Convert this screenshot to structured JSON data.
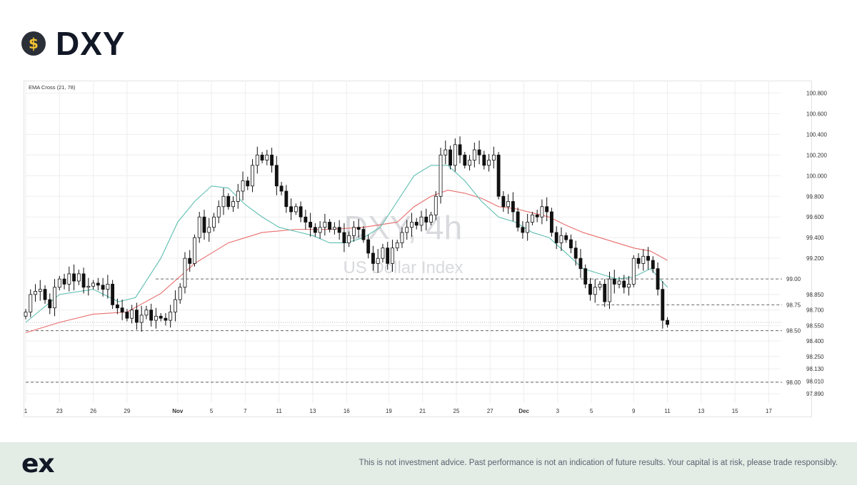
{
  "header": {
    "title": "DXY",
    "icon": "dollar-coin-icon",
    "coin_symbol": "$"
  },
  "chart_data": {
    "type": "candlestick",
    "symbol": "DXY",
    "watermark_symbol": "DXY, 4h",
    "watermark_name": "US Dollar Index",
    "indicator_label": "EMA Cross (21, 78)",
    "ylim": [
      97.8,
      100.92
    ],
    "xlim": [
      0,
      44.7
    ],
    "y_ticks": [
      {
        "value": 100.8,
        "label": "100.800"
      },
      {
        "value": 100.6,
        "label": "100.600"
      },
      {
        "value": 100.4,
        "label": "100.400"
      },
      {
        "value": 100.2,
        "label": "100.200"
      },
      {
        "value": 100.0,
        "label": "100.000"
      },
      {
        "value": 99.8,
        "label": "99.800"
      },
      {
        "value": 99.6,
        "label": "99.600"
      },
      {
        "value": 99.4,
        "label": "99.400"
      },
      {
        "value": 99.2,
        "label": "99.200"
      },
      {
        "value": 98.85,
        "label": "98.850"
      },
      {
        "value": 98.7,
        "label": "98.700"
      },
      {
        "value": 98.55,
        "label": "98.550"
      },
      {
        "value": 98.4,
        "label": "98.400"
      },
      {
        "value": 98.25,
        "label": "98.250"
      },
      {
        "value": 98.13,
        "label": "98.130"
      },
      {
        "value": 98.01,
        "label": "98.010"
      },
      {
        "value": 97.89,
        "label": "97.890"
      }
    ],
    "x_ticks": [
      {
        "pos": 0,
        "label": "1"
      },
      {
        "pos": 2,
        "label": "23"
      },
      {
        "pos": 4,
        "label": "26"
      },
      {
        "pos": 6,
        "label": "29"
      },
      {
        "pos": 9,
        "label": "Nov"
      },
      {
        "pos": 11,
        "label": "5"
      },
      {
        "pos": 13,
        "label": "7"
      },
      {
        "pos": 15,
        "label": "11"
      },
      {
        "pos": 17,
        "label": "13"
      },
      {
        "pos": 19,
        "label": "16"
      },
      {
        "pos": 21.5,
        "label": "19"
      },
      {
        "pos": 23.5,
        "label": "21"
      },
      {
        "pos": 25.5,
        "label": "25"
      },
      {
        "pos": 27.5,
        "label": "27"
      },
      {
        "pos": 29.5,
        "label": "Dec"
      },
      {
        "pos": 31.5,
        "label": "3"
      },
      {
        "pos": 33.5,
        "label": "5"
      },
      {
        "pos": 36,
        "label": "9"
      },
      {
        "pos": 38,
        "label": "11"
      },
      {
        "pos": 40,
        "label": "13"
      },
      {
        "pos": 42,
        "label": "15"
      },
      {
        "pos": 44,
        "label": "17"
      }
    ],
    "levels": [
      {
        "value": 99.0,
        "label": "99.00",
        "from": 7.7
      },
      {
        "value": 98.75,
        "label": "98.75",
        "from": 33.8
      },
      {
        "value": 98.5,
        "label": "98.50",
        "from": 0
      },
      {
        "value": 98.0,
        "label": "98.00",
        "from": 0
      }
    ],
    "current_price": 98.58,
    "candles_close": [
      98.68,
      98.85,
      98.88,
      98.9,
      98.8,
      98.72,
      98.92,
      99.0,
      98.95,
      99.05,
      98.98,
      99.05,
      98.92,
      98.93,
      98.96,
      98.94,
      98.9,
      98.95,
      98.75,
      98.72,
      98.68,
      98.62,
      98.7,
      98.58,
      98.65,
      98.7,
      98.6,
      98.64,
      98.62,
      98.6,
      98.68,
      98.8,
      98.92,
      99.2,
      99.15,
      99.4,
      99.6,
      99.45,
      99.5,
      99.6,
      99.7,
      99.8,
      99.7,
      99.75,
      99.85,
      99.95,
      99.9,
      100.1,
      100.2,
      100.15,
      100.2,
      100.1,
      99.9,
      99.85,
      99.7,
      99.65,
      99.7,
      99.6,
      99.55,
      99.5,
      99.45,
      99.5,
      99.55,
      99.48,
      99.5,
      99.45,
      99.35,
      99.42,
      99.5,
      99.48,
      99.38,
      99.25,
      99.15,
      99.2,
      99.3,
      99.15,
      99.3,
      99.35,
      99.45,
      99.5,
      99.55,
      99.52,
      99.6,
      99.55,
      99.62,
      99.8,
      100.2,
      100.25,
      100.1,
      100.3,
      100.2,
      100.1,
      100.15,
      100.25,
      100.2,
      100.1,
      100.15,
      100.2,
      99.8,
      99.7,
      99.75,
      99.65,
      99.5,
      99.45,
      99.55,
      99.62,
      99.6,
      99.7,
      99.65,
      99.45,
      99.35,
      99.42,
      99.38,
      99.3,
      99.2,
      99.1,
      98.95,
      98.85,
      98.92,
      98.95,
      98.78,
      99.0,
      98.95,
      98.98,
      98.92,
      98.95,
      99.2,
      99.15,
      99.22,
      99.18,
      99.1,
      98.9,
      98.6,
      98.56
    ],
    "ema21": [
      [
        0,
        98.58
      ],
      [
        2,
        98.85
      ],
      [
        4,
        98.9
      ],
      [
        5.5,
        98.78
      ],
      [
        6.5,
        98.82
      ],
      [
        8,
        99.2
      ],
      [
        9,
        99.55
      ],
      [
        10,
        99.75
      ],
      [
        11,
        99.9
      ],
      [
        12,
        99.88
      ],
      [
        13,
        99.72
      ],
      [
        14,
        99.6
      ],
      [
        15,
        99.5
      ],
      [
        16,
        99.46
      ],
      [
        17,
        99.42
      ],
      [
        18,
        99.35
      ],
      [
        19,
        99.35
      ],
      [
        20,
        99.4
      ],
      [
        21,
        99.5
      ],
      [
        22,
        99.75
      ],
      [
        23,
        100.0
      ],
      [
        24,
        100.1
      ],
      [
        25,
        100.1
      ],
      [
        26,
        99.95
      ],
      [
        27,
        99.75
      ],
      [
        28,
        99.6
      ],
      [
        29,
        99.55
      ],
      [
        30,
        99.45
      ],
      [
        31,
        99.4
      ],
      [
        32,
        99.25
      ],
      [
        33,
        99.1
      ],
      [
        34,
        99.05
      ],
      [
        35,
        99.0
      ],
      [
        36,
        99.02
      ],
      [
        37,
        99.1
      ],
      [
        38,
        98.92
      ]
    ],
    "ema78": [
      [
        0,
        98.48
      ],
      [
        2,
        98.58
      ],
      [
        4,
        98.66
      ],
      [
        6,
        98.68
      ],
      [
        8,
        98.86
      ],
      [
        10,
        99.15
      ],
      [
        12,
        99.35
      ],
      [
        14,
        99.45
      ],
      [
        16,
        99.48
      ],
      [
        18,
        99.48
      ],
      [
        20,
        99.5
      ],
      [
        22,
        99.55
      ],
      [
        23,
        99.7
      ],
      [
        24,
        99.8
      ],
      [
        25,
        99.86
      ],
      [
        26,
        99.83
      ],
      [
        27,
        99.78
      ],
      [
        28,
        99.7
      ],
      [
        29,
        99.68
      ],
      [
        30,
        99.64
      ],
      [
        31,
        99.6
      ],
      [
        32,
        99.52
      ],
      [
        33,
        99.45
      ],
      [
        34,
        99.4
      ],
      [
        35,
        99.35
      ],
      [
        36,
        99.3
      ],
      [
        37,
        99.27
      ],
      [
        38,
        99.18
      ]
    ]
  },
  "footer": {
    "logo_text": "ex",
    "disclaimer": "This is not investment advice. Past performance is not an indication of future results. Your capital is at risk, please trade responsibly."
  },
  "colors": {
    "up": "#222831",
    "down": "#111111",
    "ema21": "#5fbfb1",
    "ema78": "#e86b6b",
    "grid": "#eeeeee",
    "level": "#666666",
    "axis_text": "#333333",
    "watermark": "#d9dadd",
    "footer_bg": "#e4ece6"
  }
}
